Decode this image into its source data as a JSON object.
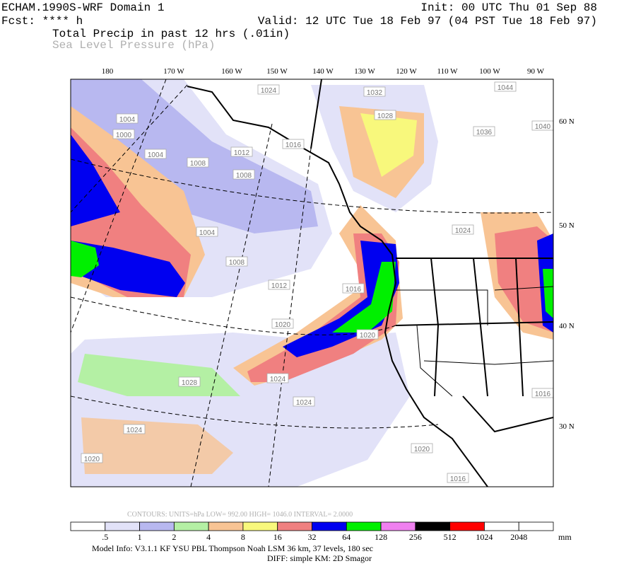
{
  "header": {
    "title": "ECHAM.1990S-WRF Domain 1",
    "fcst": "Fcst: **** h",
    "init": "Init: 00 UTC Thu 01 Sep 88",
    "valid": "Valid: 12 UTC Tue 18 Feb 97 (04 PST Tue 18 Feb 97)",
    "field1": "Total Precip in past 12 hrs (.01in)",
    "field2": "Sea Level Pressure (hPa)"
  },
  "map": {
    "lon_labels": [
      "180",
      "170 W",
      "160 W",
      "150 W",
      "140 W",
      "130 W",
      "120 W",
      "110 W",
      "100 W",
      "90 W"
    ],
    "lat_labels": [
      "60 N",
      "50 N",
      "40 N",
      "30 N"
    ],
    "isobar_labels": [
      "1024",
      "1032",
      "1044",
      "1004",
      "1000",
      "1004",
      "1008",
      "1012",
      "1016",
      "1028",
      "1036",
      "1040",
      "1008",
      "1004",
      "1008",
      "1012",
      "1016",
      "1020",
      "1020",
      "1024",
      "1028",
      "1024",
      "1024",
      "1024",
      "1020",
      "1020",
      "1016",
      "1016"
    ]
  },
  "contour_info": "CONTOURS:  UNITS=hPa  LOW=  992.00     HIGH=  1046.0     INTERVAL=   2.0000",
  "colorbar": {
    "labels": [
      ".5",
      "1",
      "2",
      "4",
      "8",
      "16",
      "32",
      "64",
      "128",
      "256",
      "512",
      "1024",
      "2048"
    ],
    "unit": "mm",
    "colors": [
      "#ffffff",
      "#e2e2f8",
      "#b8b8f0",
      "#b4f0a4",
      "#f8c494",
      "#f8f87c",
      "#f08080",
      "#0000f0",
      "#00f000",
      "#f080f0",
      "#000000",
      "#ff0000",
      "#ffffff",
      "#ffffff"
    ]
  },
  "footer": {
    "model_info": "Model Info: V3.1.1    KF     YSU PBL   Thompson    Noah LSM   36 km,    37 levels,   180 sec",
    "diff": "DIFF: simple KM: 2D Smagor"
  }
}
